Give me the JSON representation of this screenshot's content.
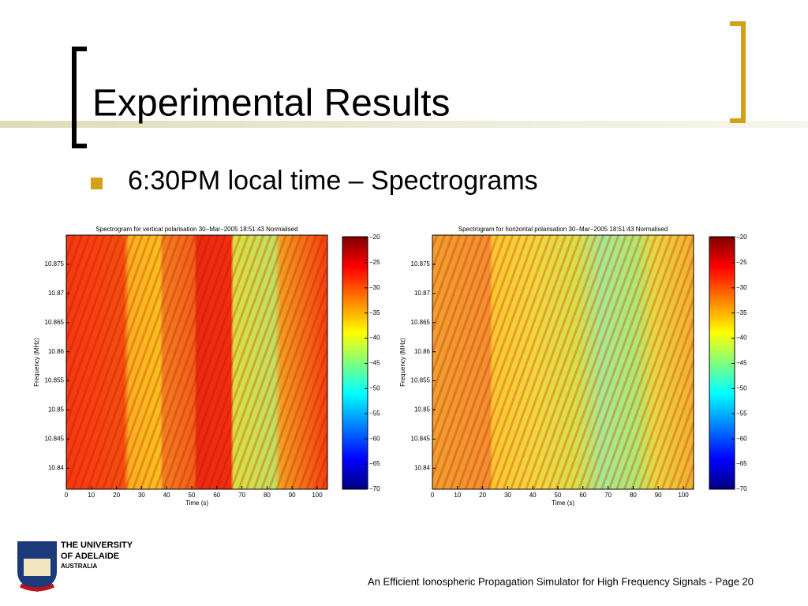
{
  "header": {
    "title": "Experimental Results"
  },
  "bullets": [
    "6:30PM local time – Spectrograms"
  ],
  "figures": [
    {
      "title": "Spectrogram for vertical polarisation 30−Mar−2005 18:51:43 Normalised",
      "xlabel": "Time (s)",
      "ylabel": "Frequency (MHz)",
      "xticks": [
        "0",
        "10",
        "20",
        "30",
        "40",
        "50",
        "60",
        "70",
        "80",
        "90",
        "100"
      ],
      "yticks": [
        "10.875",
        "10.87",
        "10.865",
        "10.86",
        "10.855",
        "10.85",
        "10.845",
        "10.84"
      ],
      "colorbar_ticks": [
        "−20",
        "−25",
        "−30",
        "−35",
        "−40",
        "−45",
        "−50",
        "−55",
        "−60",
        "−65",
        "−70"
      ]
    },
    {
      "title": "Spectrogram for horizontal polarisation 30−Mar−2005 18:51:43 Normalised",
      "xlabel": "Time (s)",
      "ylabel": "Frequency (MHz)",
      "xticks": [
        "0",
        "10",
        "20",
        "30",
        "40",
        "50",
        "60",
        "70",
        "80",
        "90",
        "100"
      ],
      "yticks": [
        "10.875",
        "10.87",
        "10.865",
        "10.86",
        "10.855",
        "10.85",
        "10.845",
        "10.84"
      ],
      "colorbar_ticks": [
        "−20",
        "−25",
        "−30",
        "−35",
        "−40",
        "−45",
        "−50",
        "−55",
        "−60",
        "−65",
        "−70"
      ]
    }
  ],
  "logo": {
    "lines": [
      "THE UNIVERSITY",
      "OF ADELAIDE",
      "AUSTRALIA"
    ]
  },
  "footer": "An Efficient Ionospheric Propagation Simulator for High Frequency Signals - Page 20"
}
